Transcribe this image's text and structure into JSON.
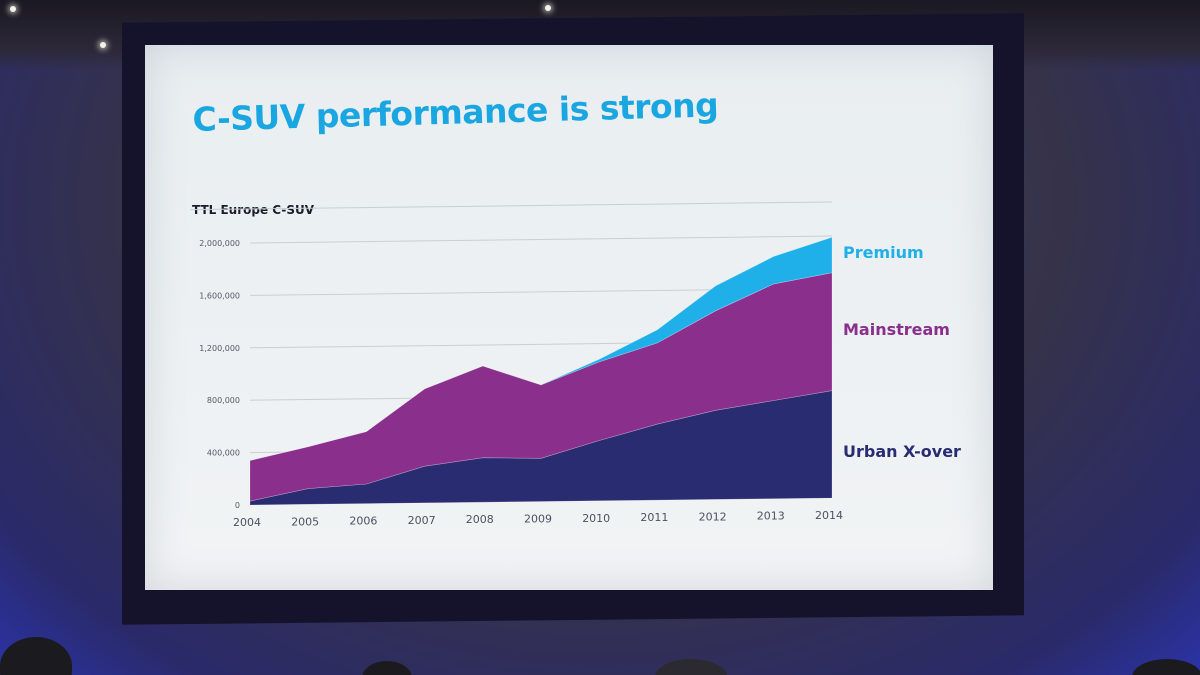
{
  "slide": {
    "title": "C-SUV performance is strong"
  },
  "colors": {
    "title": "#1aa6e0",
    "premium": "#1fb0ea",
    "mainstream": "#8a2f8c",
    "urban_x_over": "#2a2c72"
  },
  "chart_data": {
    "type": "area",
    "stacked": true,
    "title": "TTL Europe C-SUV",
    "xlabel": "",
    "ylabel": "",
    "x": [
      2004,
      2005,
      2006,
      2007,
      2008,
      2009,
      2010,
      2011,
      2012,
      2013,
      2014
    ],
    "ylim": [
      0,
      2000000
    ],
    "yticks": [
      0,
      400000,
      800000,
      1200000,
      1600000,
      2000000
    ],
    "ytick_labels": [
      "0",
      "400,000",
      "800,000",
      "1,200,000",
      "1,600,000",
      "2,000,000"
    ],
    "xtick_labels": [
      "2004",
      "2005",
      "2006",
      "2007",
      "2008",
      "2009",
      "2010",
      "2011",
      "2012",
      "2013",
      "2014"
    ],
    "grid": true,
    "legend_placement": "right",
    "series": [
      {
        "name": "Urban X-over",
        "color": "#2a2c72",
        "values": [
          30000,
          120000,
          150000,
          280000,
          340000,
          330000,
          460000,
          580000,
          680000,
          750000,
          820000
        ]
      },
      {
        "name": "Mainstream",
        "color": "#8a2f8c",
        "values": [
          310000,
          320000,
          400000,
          590000,
          700000,
          560000,
          600000,
          620000,
          760000,
          890000,
          900000
        ]
      },
      {
        "name": "Premium",
        "color": "#1fb0ea",
        "values": [
          0,
          0,
          0,
          0,
          0,
          0,
          20000,
          100000,
          190000,
          210000,
          270000
        ]
      }
    ]
  }
}
